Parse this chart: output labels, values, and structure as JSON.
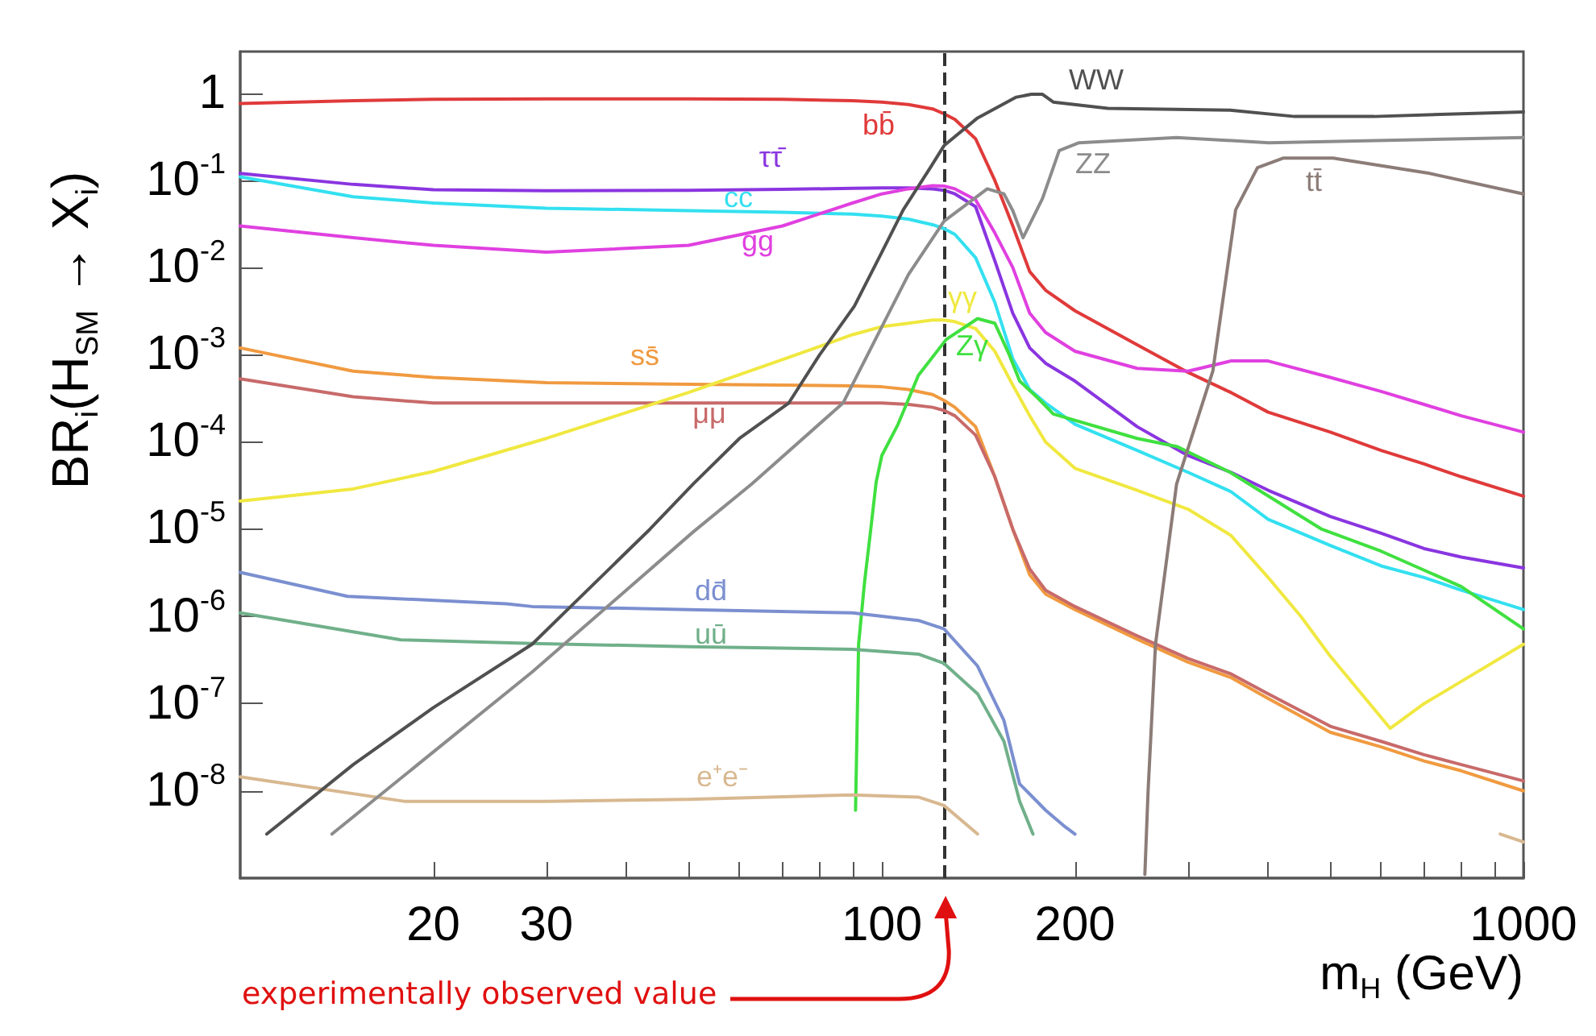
{
  "chart_data": {
    "type": "line",
    "xlabel": "m$_{H}$ (GeV)",
    "ylabel": "BR$_{i}$(H$_{SM}$ → X$_{i}$)",
    "log": "xy",
    "grid": false,
    "marker": "none",
    "line_style": "solid",
    "xlim": [
      10,
      1000
    ],
    "ylim": [
      1e-09,
      3
    ],
    "xticks": [
      20,
      30,
      {
        "value": 40,
        "label": null
      },
      {
        "value": 50,
        "label": null
      },
      {
        "value": 60,
        "label": null
      },
      {
        "value": 70,
        "label": null
      },
      {
        "value": 80,
        "label": null
      },
      {
        "value": 90,
        "label": null
      },
      100,
      200,
      {
        "value": 300,
        "label": null
      },
      {
        "value": 400,
        "label": null
      },
      {
        "value": 500,
        "label": null
      },
      {
        "value": 600,
        "label": null
      },
      {
        "value": 700,
        "label": null
      },
      {
        "value": 800,
        "label": null
      },
      {
        "value": 900,
        "label": null
      },
      1000
    ],
    "yticks": [
      {
        "value": 1e-08,
        "label": "10$^{-8}$"
      },
      {
        "value": 1e-07,
        "label": "10$^{-7}$"
      },
      {
        "value": 1e-06,
        "label": "10$^{-6}$"
      },
      {
        "value": 1e-05,
        "label": "10$^{-5}$"
      },
      {
        "value": 0.0001,
        "label": "10$^{-4}$"
      },
      {
        "value": 0.001,
        "label": "10$^{-3}$"
      },
      {
        "value": 0.01,
        "label": "10$^{-2}$"
      },
      {
        "value": 0.1,
        "label": "10$^{-1}$"
      },
      1
    ],
    "ref_lines": [
      {
        "axis": "x",
        "value": 125,
        "color": "#333333",
        "line_style": "dashed"
      }
    ],
    "annotations": [
      "experimentally observed value"
    ],
    "x": [
      10,
      15,
      20,
      30,
      50,
      70,
      90,
      100,
      110,
      120,
      125,
      130,
      140,
      150,
      160,
      170,
      180,
      200,
      250,
      300,
      350,
      400,
      500,
      600,
      700,
      800,
      1000
    ],
    "series": [
      {
        "name": "bb̄",
        "color": "#e03a3a",
        "values": [
          0.76,
          0.82,
          0.85,
          0.86,
          0.86,
          0.85,
          0.82,
          0.79,
          0.74,
          0.66,
          0.58,
          0.5,
          0.3,
          0.1,
          0.03,
          0.009,
          0.0055,
          0.0032,
          0.0013,
          0.00063,
          0.00037,
          0.00022,
          0.00013,
          8e-05,
          5.6e-05,
          4e-05,
          2.4e-05
        ]
      },
      {
        "name": "ττ̄",
        "color": "#8a35e0",
        "values": [
          0.12,
          0.09,
          0.078,
          0.076,
          0.077,
          0.079,
          0.081,
          0.082,
          0.082,
          0.08,
          0.077,
          0.07,
          0.05,
          0.012,
          0.003,
          0.0012,
          0.0008,
          0.0005,
          0.00015,
          7e-05,
          4.5e-05,
          2.8e-05,
          1.4e-05,
          9e-06,
          6e-06,
          4.8e-06,
          3.6e-06
        ]
      },
      {
        "name": "cc",
        "color": "#33e0f0",
        "values": [
          0.11,
          0.065,
          0.055,
          0.048,
          0.045,
          0.043,
          0.041,
          0.039,
          0.036,
          0.031,
          0.028,
          0.024,
          0.013,
          0.004,
          0.0009,
          0.0004,
          0.00028,
          0.00016,
          8e-05,
          4.5e-05,
          2.7e-05,
          1.3e-05,
          6.5e-06,
          3.8e-06,
          2.8e-06,
          2e-06,
          1.2e-06
        ]
      },
      {
        "name": "gg",
        "color": "#e040e0",
        "values": [
          0.03,
          0.022,
          0.018,
          0.015,
          0.018,
          0.03,
          0.055,
          0.07,
          0.08,
          0.087,
          0.086,
          0.08,
          0.06,
          0.025,
          0.01,
          0.003,
          0.0018,
          0.0011,
          0.0007,
          0.00065,
          0.00085,
          0.00085,
          0.00055,
          0.00038,
          0.00027,
          0.0002,
          0.00013
        ]
      },
      {
        "name": "ss̄",
        "color": "#f09a40",
        "values": [
          0.0012,
          0.00065,
          0.00055,
          0.00048,
          0.00046,
          0.00045,
          0.00044,
          0.00043,
          0.0004,
          0.00035,
          0.0003,
          0.00025,
          0.00015,
          4e-05,
          1e-05,
          3e-06,
          1.8e-06,
          1.2e-06,
          5.5e-07,
          3e-07,
          2e-07,
          1.15e-07,
          4.7e-08,
          3.2e-08,
          2.2e-08,
          1.7e-08,
          1e-08
        ]
      },
      {
        "name": "μμ",
        "color": "#c86a6a",
        "values": [
          0.00053,
          0.00033,
          0.00028,
          0.00028,
          0.00028,
          0.00028,
          0.00028,
          0.00028,
          0.00027,
          0.00025,
          0.00023,
          0.0002,
          0.00012,
          4e-05,
          1e-05,
          3.5e-06,
          2e-06,
          1.3e-06,
          6e-07,
          3.3e-07,
          2.2e-07,
          1.3e-07,
          5.5e-08,
          3.7e-08,
          2.6e-08,
          2e-08,
          1.3e-08
        ]
      },
      {
        "name": "γγ",
        "color": "#f0e840",
        "x": [
          10,
          15,
          20,
          30,
          50,
          70,
          90,
          100,
          110,
          120,
          125,
          130,
          140,
          150,
          160,
          170,
          180,
          200,
          250,
          300,
          350,
          400,
          450,
          500,
          585,
          620,
          700,
          800,
          1000
        ],
        "values": [
          2.1e-05,
          2.9e-05,
          4.6e-05,
          0.00011,
          0.00037,
          0.00088,
          0.0017,
          0.0021,
          0.0023,
          0.0025,
          0.0025,
          0.0024,
          0.002,
          0.0011,
          0.00045,
          0.0002,
          0.0001,
          5e-05,
          2.8e-05,
          1.7e-05,
          8.5e-06,
          2.8e-06,
          1e-06,
          3.5e-07,
          8.7e-08,
          5.2e-08,
          1e-07,
          1.8e-07,
          4.8e-07
        ]
      },
      {
        "name": "Zγ",
        "color": "#40e040",
        "x": [
          91,
          92,
          94,
          96,
          98,
          100,
          106,
          114,
          126,
          141,
          150,
          158,
          164,
          175,
          185,
          250,
          288,
          349,
          485,
          600,
          800,
          1000
        ],
        "values": [
          6e-09,
          4.8e-07,
          2.5e-06,
          9.3e-06,
          3.5e-05,
          7e-05,
          0.00016,
          0.00058,
          0.0015,
          0.0026,
          0.0023,
          0.001,
          0.0005,
          0.00032,
          0.00021,
          0.00011,
          8.9e-05,
          4.5e-05,
          1e-05,
          5.6e-06,
          2.2e-06,
          7.2e-07
        ]
      },
      {
        "name": "dd̄",
        "color": "#7b8fd0",
        "x": [
          10,
          14.7,
          26,
          28.5,
          50,
          90,
          114,
          125,
          141,
          155,
          164,
          180,
          192,
          200
        ],
        "values": [
          3.2e-06,
          1.7e-06,
          1.4e-06,
          1.3e-06,
          1.2e-06,
          1.1e-06,
          9e-07,
          7.2e-07,
          2.7e-07,
          6.4e-08,
          1.2e-08,
          6e-09,
          4e-09,
          3.2e-09
        ]
      },
      {
        "name": "uū",
        "color": "#70b08a",
        "x": [
          10,
          17.8,
          28.5,
          50,
          90,
          114,
          125,
          141,
          155,
          164,
          172
        ],
        "values": [
          1.1e-06,
          5.4e-07,
          4.9e-07,
          4.5e-07,
          4.2e-07,
          3.7e-07,
          2.9e-07,
          1.3e-07,
          3.7e-08,
          7.6e-09,
          3.2e-09
        ]
      },
      {
        "name": "e⁺e⁻",
        "color": "#d8b890",
        "x": [
          10,
          18,
          30,
          50,
          90,
          114,
          125,
          141,
          500,
          920,
          1000
        ],
        "values": [
          1.45e-08,
          7.6e-09,
          7.6e-09,
          8e-09,
          9e-09,
          8.5e-09,
          6.8e-09,
          3.2e-09,
          null,
          3.2e-09,
          2.6e-09
        ]
      },
      {
        "name": "WW",
        "color": "#505050",
        "x": [
          11,
          15,
          20,
          28.5,
          35,
          43.5,
          50.8,
          60,
          71.6,
          80,
          90.6,
          100,
          108,
          119,
          125,
          141,
          162,
          171,
          178,
          185,
          225,
          349,
          440,
          585,
          1000
        ],
        "values": [
          3.2e-09,
          2e-08,
          9e-08,
          4.8e-07,
          2.1e-06,
          1e-05,
          3.3e-05,
          0.00011,
          0.00028,
          0.001,
          0.0036,
          0.015,
          0.046,
          0.14,
          0.25,
          0.52,
          0.9,
          0.97,
          0.97,
          0.79,
          0.67,
          0.64,
          0.54,
          0.54,
          0.61
        ]
      },
      {
        "name": "ZZ",
        "color": "#8c8c8c",
        "x": [
          13.9,
          20,
          28.5,
          50.8,
          62.7,
          87,
          100,
          110,
          125,
          146,
          155,
          160,
          166,
          178,
          189,
          203,
          288,
          401,
          1000
        ],
        "values": [
          3.2e-09,
          2.8e-08,
          2.3e-07,
          9.3e-06,
          3.3e-05,
          0.00028,
          0.0021,
          0.0083,
          0.034,
          0.08,
          0.07,
          0.045,
          0.022,
          0.062,
          0.22,
          0.27,
          0.31,
          0.27,
          0.31
        ]
      },
      {
        "name": "tt̄",
        "color": "#8c7c78",
        "x": [
          257,
          260,
          267,
          288,
          328,
          356,
          385,
          422,
          505,
          715,
          1000
        ],
        "values": [
          1.1e-09,
          1e-08,
          4.8e-07,
          3.3e-05,
          0.00065,
          0.046,
          0.14,
          0.18,
          0.18,
          0.12,
          0.07
        ]
      }
    ]
  }
}
